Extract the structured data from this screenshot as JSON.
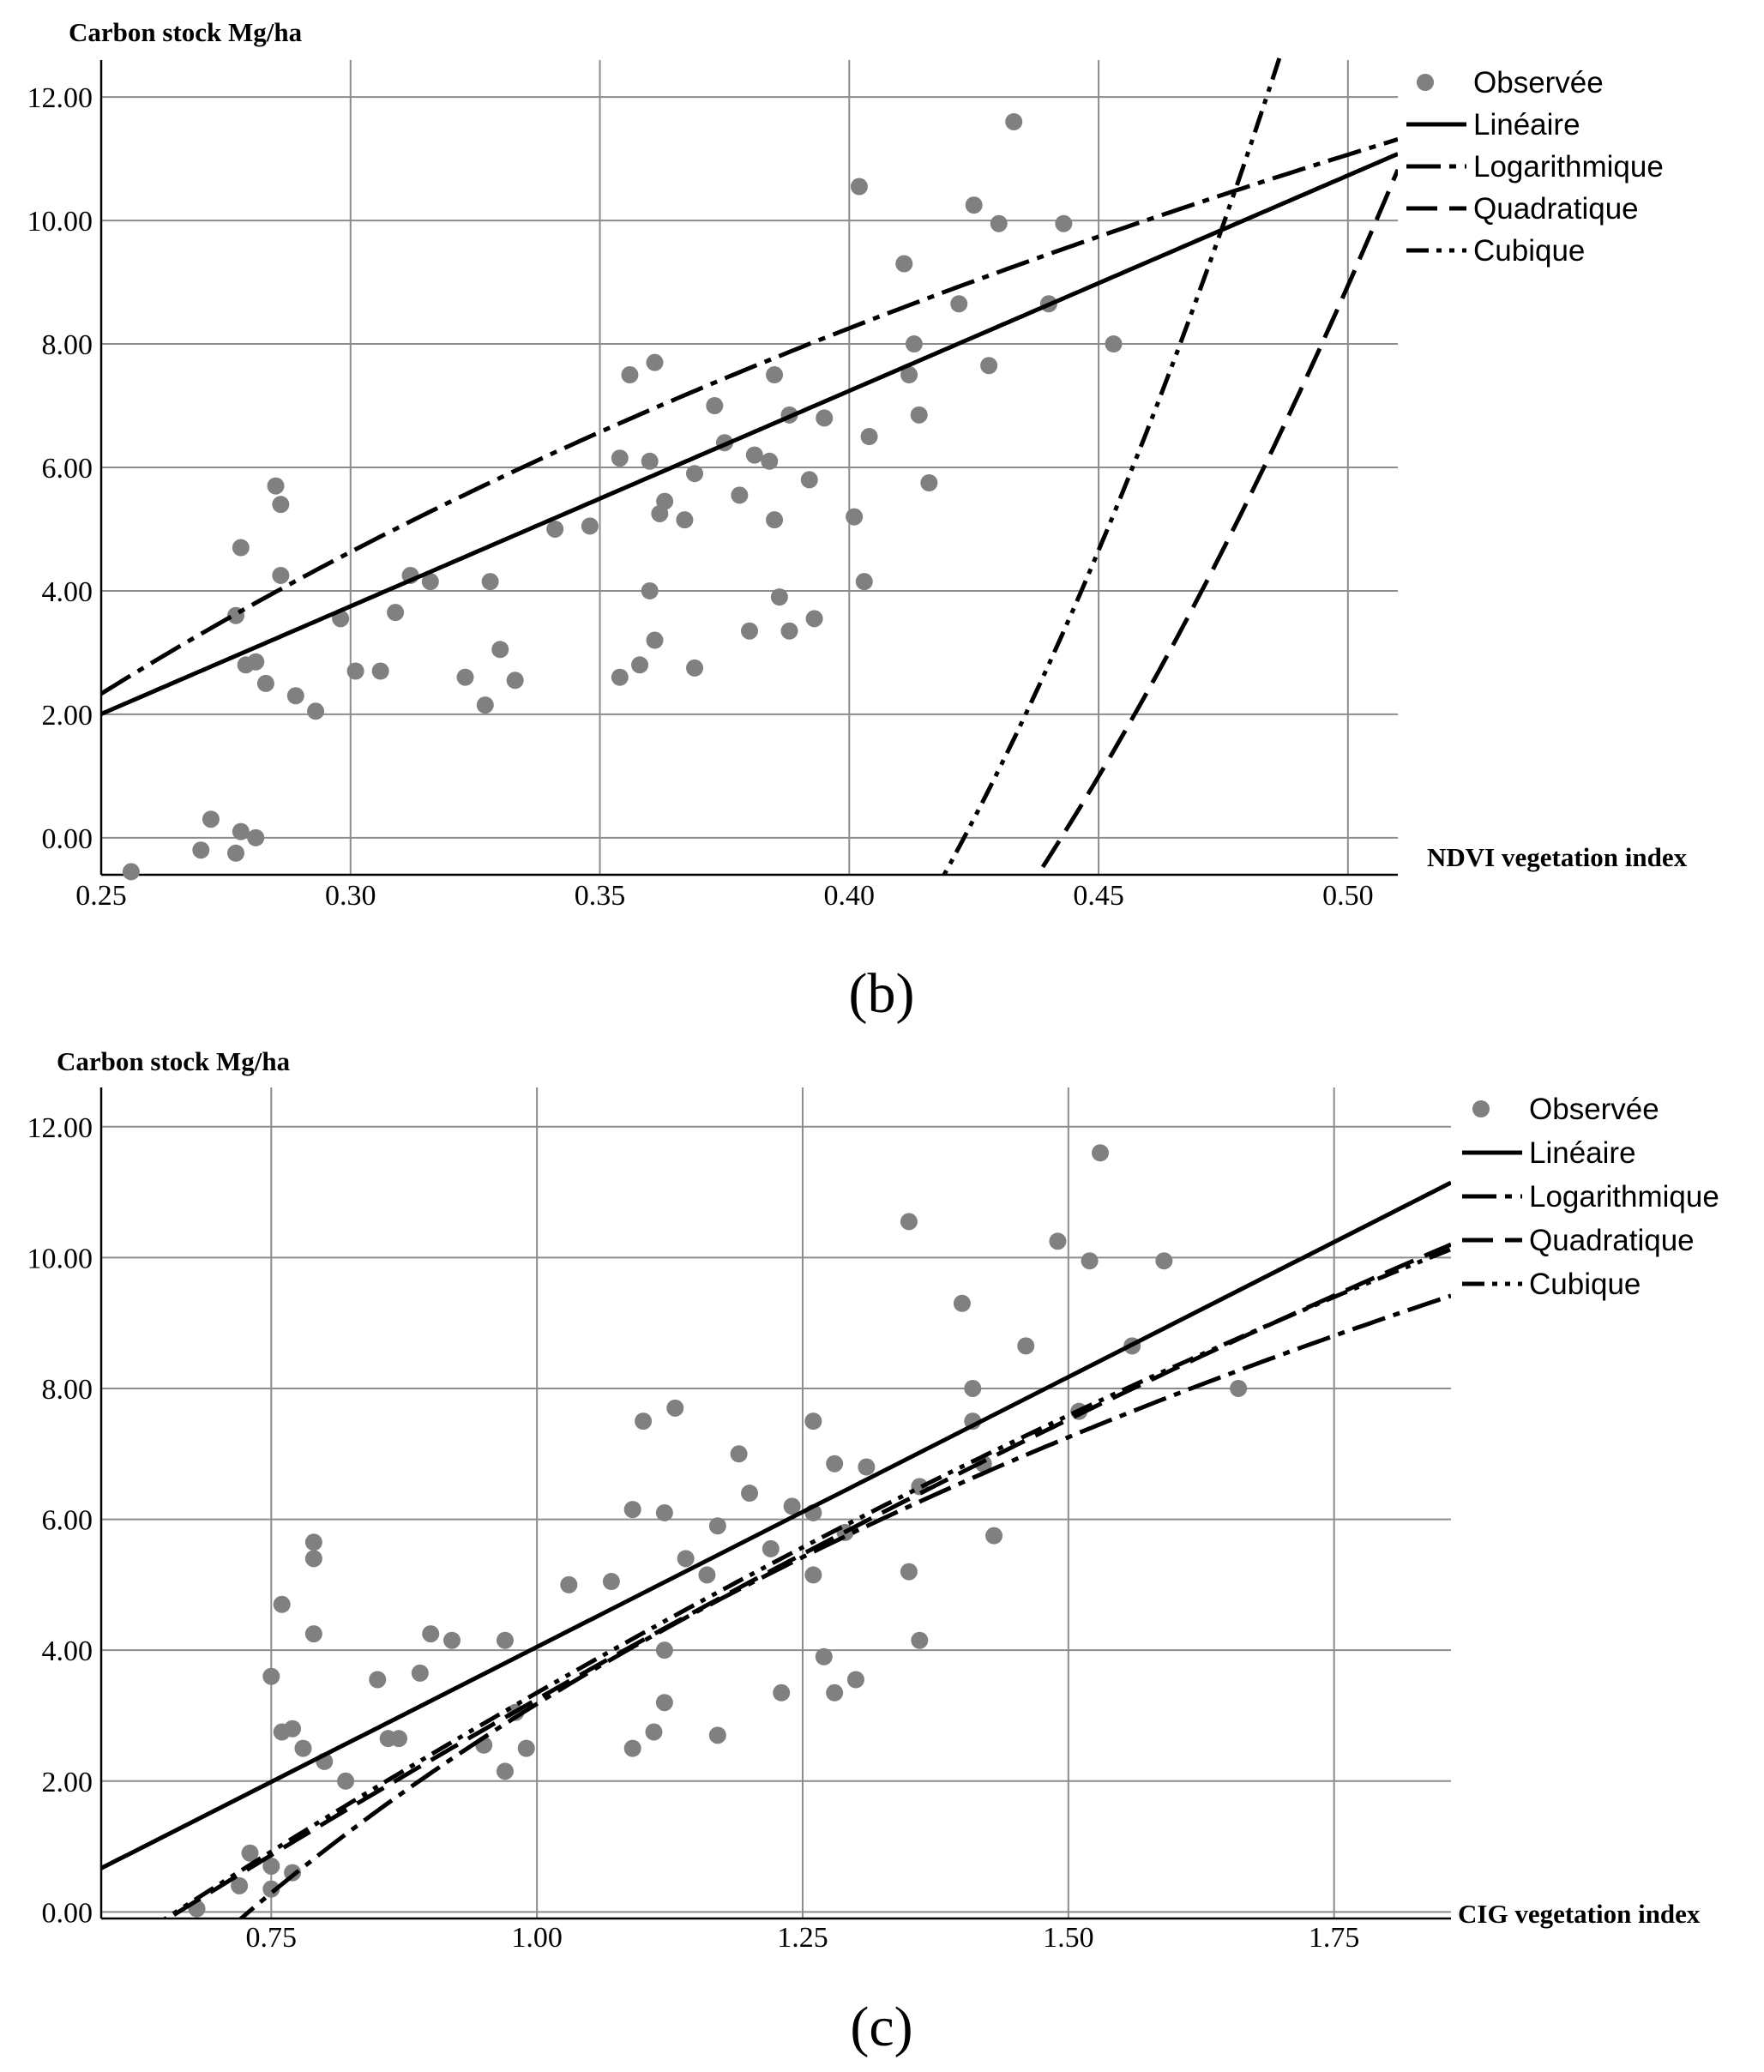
{
  "chart_data": [
    {
      "type": "scatter",
      "panel_label": "(b)",
      "ylabel": "Carbon stock Mg/ha",
      "xlabel": "NDVI vegetation index",
      "xlim": [
        0.25,
        0.51
      ],
      "ylim": [
        -0.6,
        12.6
      ],
      "x_ticks": [
        0.25,
        0.3,
        0.35,
        0.4,
        0.45,
        0.5
      ],
      "x_tick_labels": [
        "0.25",
        "0.30",
        "0.35",
        "0.40",
        "0.45",
        "0.50"
      ],
      "y_ticks": [
        0,
        2,
        4,
        6,
        8,
        10,
        12
      ],
      "y_tick_labels": [
        "0.00",
        "2.00",
        "4.00",
        "6.00",
        "8.00",
        "10.00",
        "12.00"
      ],
      "legend": [
        {
          "key": "obs",
          "label": "Observée"
        },
        {
          "key": "lin",
          "label": "Linéaire"
        },
        {
          "key": "log",
          "label": "Logarithmique"
        },
        {
          "key": "quad",
          "label": "Quadratique"
        },
        {
          "key": "cub",
          "label": "Cubique"
        }
      ],
      "series": [
        {
          "name": "Observée",
          "kind": "points",
          "points": [
            [
              0.256,
              -0.55
            ],
            [
              0.27,
              -0.2
            ],
            [
              0.272,
              0.3
            ],
            [
              0.277,
              -0.25
            ],
            [
              0.278,
              0.1
            ],
            [
              0.281,
              0.0
            ],
            [
              0.277,
              3.6
            ],
            [
              0.278,
              4.7
            ],
            [
              0.279,
              2.8
            ],
            [
              0.281,
              2.85
            ],
            [
              0.283,
              2.5
            ],
            [
              0.285,
              5.7
            ],
            [
              0.286,
              5.4
            ],
            [
              0.286,
              4.25
            ],
            [
              0.289,
              2.3
            ],
            [
              0.293,
              2.05
            ],
            [
              0.298,
              3.55
            ],
            [
              0.301,
              2.7
            ],
            [
              0.306,
              2.7
            ],
            [
              0.309,
              3.65
            ],
            [
              0.312,
              4.25
            ],
            [
              0.316,
              4.15
            ],
            [
              0.323,
              2.6
            ],
            [
              0.327,
              2.15
            ],
            [
              0.328,
              4.15
            ],
            [
              0.33,
              3.05
            ],
            [
              0.333,
              2.55
            ],
            [
              0.341,
              5.0
            ],
            [
              0.348,
              5.05
            ],
            [
              0.354,
              6.15
            ],
            [
              0.354,
              2.6
            ],
            [
              0.356,
              7.5
            ],
            [
              0.358,
              2.8
            ],
            [
              0.36,
              6.1
            ],
            [
              0.36,
              4.0
            ],
            [
              0.361,
              3.2
            ],
            [
              0.361,
              7.7
            ],
            [
              0.362,
              5.25
            ],
            [
              0.363,
              5.45
            ],
            [
              0.367,
              5.15
            ],
            [
              0.369,
              2.75
            ],
            [
              0.369,
              5.9
            ],
            [
              0.373,
              7.0
            ],
            [
              0.375,
              6.4
            ],
            [
              0.378,
              5.55
            ],
            [
              0.38,
              3.35
            ],
            [
              0.381,
              6.2
            ],
            [
              0.384,
              6.1
            ],
            [
              0.385,
              5.15
            ],
            [
              0.385,
              7.5
            ],
            [
              0.386,
              3.9
            ],
            [
              0.388,
              3.35
            ],
            [
              0.388,
              6.85
            ],
            [
              0.392,
              5.8
            ],
            [
              0.393,
              3.55
            ],
            [
              0.395,
              6.8
            ],
            [
              0.401,
              5.2
            ],
            [
              0.402,
              10.55
            ],
            [
              0.403,
              4.15
            ],
            [
              0.404,
              6.5
            ],
            [
              0.411,
              9.3
            ],
            [
              0.412,
              7.5
            ],
            [
              0.413,
              8.0
            ],
            [
              0.414,
              6.85
            ],
            [
              0.416,
              5.75
            ],
            [
              0.422,
              8.65
            ],
            [
              0.425,
              10.25
            ],
            [
              0.428,
              7.65
            ],
            [
              0.43,
              9.95
            ],
            [
              0.433,
              11.6
            ],
            [
              0.44,
              8.65
            ],
            [
              0.443,
              9.95
            ],
            [
              0.453,
              8.0
            ]
          ]
        },
        {
          "name": "Linéaire",
          "kind": "function",
          "coef": [
            -6.72,
            34.9
          ],
          "form": "poly"
        },
        {
          "name": "Logarithmique",
          "kind": "function",
          "coef": [
            19.8,
            12.6
          ],
          "form": "log"
        },
        {
          "name": "Quadratique",
          "kind": "function",
          "coef": [
            -0.16,
            -64.14,
            0,
            329.4
          ],
          "form": "poly"
        },
        {
          "name": "Cubique",
          "kind": "function",
          "coef": [
            18.95,
            -143.77,
            0,
            553.1
          ],
          "form": "poly"
        }
      ]
    },
    {
      "type": "scatter",
      "panel_label": "(c)",
      "ylabel": "Carbon stock Mg/ha",
      "xlabel": "CIG vegetation index",
      "xlim": [
        0.59,
        1.86
      ],
      "ylim": [
        -0.1,
        12.6
      ],
      "x_ticks": [
        0.75,
        1.0,
        1.25,
        1.5,
        1.75
      ],
      "x_tick_labels": [
        "0.75",
        "1.00",
        "1.25",
        "1.50",
        "1.75"
      ],
      "y_ticks": [
        0,
        2,
        4,
        6,
        8,
        10,
        12
      ],
      "y_tick_labels": [
        "0.00",
        "2.00",
        "4.00",
        "6.00",
        "8.00",
        "10.00",
        "12.00"
      ],
      "legend": [
        {
          "key": "obs",
          "label": "Observée"
        },
        {
          "key": "lin",
          "label": "Linéaire"
        },
        {
          "key": "log",
          "label": "Logarithmique"
        },
        {
          "key": "quad",
          "label": "Quadratique"
        },
        {
          "key": "cub",
          "label": "Cubique"
        }
      ],
      "series": [
        {
          "name": "Observée",
          "kind": "points",
          "points": [
            [
              0.68,
              0.05
            ],
            [
              0.72,
              0.4
            ],
            [
              0.73,
              0.9
            ],
            [
              0.75,
              0.35
            ],
            [
              0.75,
              0.7
            ],
            [
              0.77,
              0.6
            ],
            [
              0.75,
              3.6
            ],
            [
              0.76,
              4.7
            ],
            [
              0.76,
              2.75
            ],
            [
              0.77,
              2.8
            ],
            [
              0.78,
              2.5
            ],
            [
              0.79,
              5.65
            ],
            [
              0.79,
              5.4
            ],
            [
              0.79,
              4.25
            ],
            [
              0.8,
              2.3
            ],
            [
              0.82,
              2.0
            ],
            [
              0.85,
              3.55
            ],
            [
              0.86,
              2.65
            ],
            [
              0.87,
              2.65
            ],
            [
              0.89,
              3.65
            ],
            [
              0.9,
              4.25
            ],
            [
              0.92,
              4.15
            ],
            [
              0.95,
              2.55
            ],
            [
              0.97,
              2.15
            ],
            [
              0.97,
              4.15
            ],
            [
              0.98,
              3.05
            ],
            [
              0.99,
              2.5
            ],
            [
              1.03,
              5.0
            ],
            [
              1.07,
              5.05
            ],
            [
              1.09,
              6.15
            ],
            [
              1.09,
              2.5
            ],
            [
              1.1,
              7.5
            ],
            [
              1.11,
              2.75
            ],
            [
              1.12,
              6.1
            ],
            [
              1.12,
              4.0
            ],
            [
              1.12,
              3.2
            ],
            [
              1.13,
              7.7
            ],
            [
              1.14,
              5.4
            ],
            [
              1.16,
              5.15
            ],
            [
              1.17,
              2.7
            ],
            [
              1.17,
              5.9
            ],
            [
              1.19,
              7.0
            ],
            [
              1.2,
              6.4
            ],
            [
              1.22,
              5.55
            ],
            [
              1.23,
              3.35
            ],
            [
              1.24,
              6.2
            ],
            [
              1.26,
              6.1
            ],
            [
              1.26,
              5.15
            ],
            [
              1.26,
              7.5
            ],
            [
              1.27,
              3.9
            ],
            [
              1.28,
              3.35
            ],
            [
              1.28,
              6.85
            ],
            [
              1.29,
              5.8
            ],
            [
              1.3,
              3.55
            ],
            [
              1.31,
              6.8
            ],
            [
              1.35,
              5.2
            ],
            [
              1.35,
              10.55
            ],
            [
              1.36,
              4.15
            ],
            [
              1.36,
              6.5
            ],
            [
              1.4,
              9.3
            ],
            [
              1.41,
              7.5
            ],
            [
              1.41,
              8.0
            ],
            [
              1.42,
              6.85
            ],
            [
              1.43,
              5.75
            ],
            [
              1.46,
              8.65
            ],
            [
              1.49,
              10.25
            ],
            [
              1.51,
              7.65
            ],
            [
              1.52,
              9.95
            ],
            [
              1.53,
              11.6
            ],
            [
              1.56,
              8.65
            ],
            [
              1.59,
              9.95
            ],
            [
              1.66,
              8.0
            ]
          ]
        },
        {
          "name": "Linéaire",
          "kind": "function",
          "coef": [
            -4.2,
            8.25
          ],
          "form": "poly"
        },
        {
          "name": "Logarithmique",
          "kind": "function",
          "coef": [
            3.18,
            10.05
          ],
          "form": "log"
        },
        {
          "name": "Quadratique",
          "kind": "function",
          "coef": [
            -7.25,
            11.8,
            -1.3
          ],
          "form": "poly"
        },
        {
          "name": "Cubique",
          "kind": "function",
          "coef": [
            -7.6,
            12.6,
            -1.65
          ],
          "form": "poly"
        }
      ]
    }
  ]
}
